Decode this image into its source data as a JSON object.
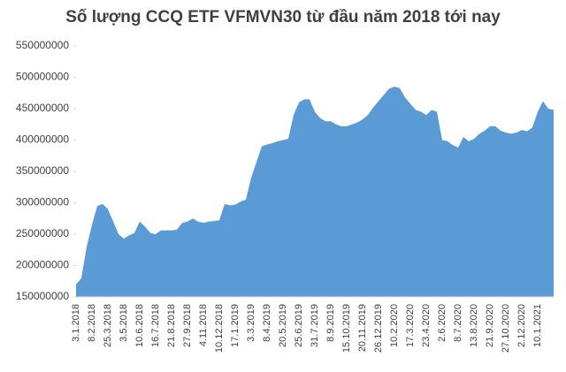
{
  "chart_data": {
    "type": "area",
    "title": "Số lượng CCQ ETF VFMVN30 từ đầu năm 2018 tới nay",
    "color": "#5b9bd5",
    "ylim": [
      150000000,
      550000000
    ],
    "yticks": [
      150000000,
      200000000,
      250000000,
      300000000,
      350000000,
      400000000,
      450000000,
      500000000,
      550000000
    ],
    "categories": [
      "3.1.2018",
      null,
      null,
      "8.2.2018",
      null,
      null,
      "25.3.2018",
      null,
      null,
      "3.5.2018",
      null,
      null,
      "10.6.2018",
      null,
      null,
      "16.7.2018",
      null,
      null,
      "21.8.2018",
      null,
      null,
      "27.9.2018",
      null,
      null,
      "4.11.2018",
      null,
      null,
      "10.12.2018",
      null,
      null,
      "17.1.2019",
      null,
      null,
      "3.3.2019",
      null,
      null,
      "8.4.2019",
      null,
      null,
      "20.5.2019",
      null,
      null,
      "25.6.2019",
      null,
      null,
      "31.7.2019",
      null,
      null,
      "8.9.2019",
      null,
      null,
      "15.10.2019",
      null,
      null,
      "20.11.2019",
      null,
      null,
      "26.12.2019",
      null,
      null,
      "10.2.2020",
      null,
      null,
      "17.3.2020",
      null,
      null,
      "23.4.2020",
      null,
      null,
      "2.6.2020",
      null,
      null,
      "8.7.2020",
      null,
      null,
      "13.8.2020",
      null,
      null,
      "21.9.2020",
      null,
      null,
      "27.10.2020",
      null,
      null,
      "2.12.2020",
      null,
      null,
      "10.1.2021",
      null,
      null,
      null
    ],
    "values": [
      170000000,
      180000000,
      230000000,
      265000000,
      295000000,
      298000000,
      290000000,
      270000000,
      250000000,
      243000000,
      248000000,
      252000000,
      270000000,
      262000000,
      252000000,
      250000000,
      256000000,
      256000000,
      256000000,
      257000000,
      268000000,
      270000000,
      275000000,
      270000000,
      268000000,
      270000000,
      271000000,
      272000000,
      298000000,
      296000000,
      297000000,
      302000000,
      305000000,
      340000000,
      365000000,
      390000000,
      393000000,
      395000000,
      398000000,
      400000000,
      402000000,
      440000000,
      460000000,
      465000000,
      465000000,
      445000000,
      435000000,
      430000000,
      430000000,
      425000000,
      422000000,
      422000000,
      425000000,
      428000000,
      433000000,
      440000000,
      452000000,
      462000000,
      472000000,
      482000000,
      485000000,
      483000000,
      468000000,
      458000000,
      448000000,
      445000000,
      440000000,
      448000000,
      445000000,
      400000000,
      398000000,
      392000000,
      388000000,
      405000000,
      398000000,
      402000000,
      410000000,
      415000000,
      422000000,
      422000000,
      415000000,
      412000000,
      410000000,
      412000000,
      416000000,
      414000000,
      420000000,
      445000000,
      462000000,
      450000000,
      448000000
    ]
  }
}
